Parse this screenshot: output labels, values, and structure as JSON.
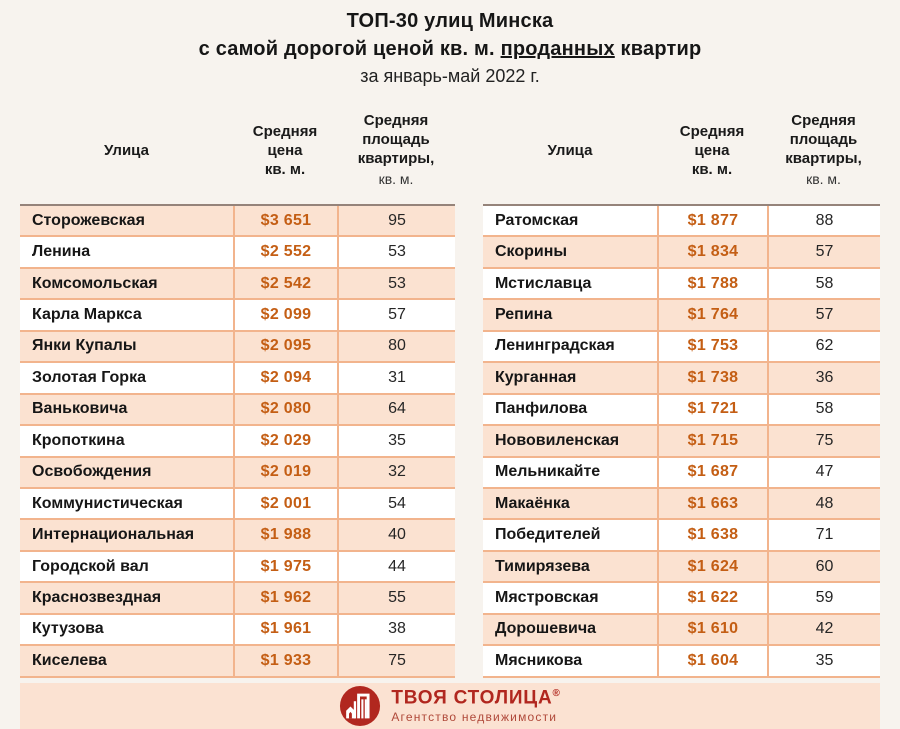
{
  "title": {
    "line1": "ТОП-30 улиц Минска",
    "line2_before": "с самой дорогой ценой кв. м. ",
    "line2_underline": "проданных",
    "line2_after": " квартир",
    "line3": "за январь-май 2022 г."
  },
  "table_headers": {
    "street": "Улица",
    "price": "Средняя\nцена\nкв. м.",
    "area": "Средняя\nплощадь\nквартиры,",
    "area_unit": "кв. м."
  },
  "chart_data": {
    "type": "table",
    "title": "ТОП-30 улиц Минска с самой дорогой ценой кв. м. проданных квартир за январь-май 2022 г.",
    "columns": [
      "Улица",
      "Средняя цена кв. м.",
      "Средняя площадь квартиры, кв. м."
    ],
    "tables": [
      {
        "rows": [
          [
            "Сторожевская",
            "$3 651",
            "95"
          ],
          [
            "Ленина",
            "$2 552",
            "53"
          ],
          [
            "Комсомольская",
            "$2 542",
            "53"
          ],
          [
            "Карла Маркса",
            "$2 099",
            "57"
          ],
          [
            "Янки Купалы",
            "$2 095",
            "80"
          ],
          [
            "Золотая Горка",
            "$2 094",
            "31"
          ],
          [
            "Ваньковича",
            "$2 080",
            "64"
          ],
          [
            "Кропоткина",
            "$2 029",
            "35"
          ],
          [
            "Освобождения",
            "$2 019",
            "32"
          ],
          [
            "Коммунистическая",
            "$2 001",
            "54"
          ],
          [
            "Интернациональная",
            "$1 988",
            "40"
          ],
          [
            "Городской вал",
            "$1 975",
            "44"
          ],
          [
            "Краснозвездная",
            "$1 962",
            "55"
          ],
          [
            "Кутузова",
            "$1 961",
            "38"
          ],
          [
            "Киселева",
            "$1 933",
            "75"
          ]
        ]
      },
      {
        "rows": [
          [
            "Ратомская",
            "$1 877",
            "88"
          ],
          [
            "Скорины",
            "$1 834",
            "57"
          ],
          [
            "Мстиславца",
            "$1 788",
            "58"
          ],
          [
            "Репина",
            "$1 764",
            "57"
          ],
          [
            "Ленинградская",
            "$1 753",
            "62"
          ],
          [
            "Курганная",
            "$1 738",
            "36"
          ],
          [
            "Панфилова",
            "$1 721",
            "58"
          ],
          [
            "Нововиленская",
            "$1 715",
            "75"
          ],
          [
            "Мельникайте",
            "$1 687",
            "47"
          ],
          [
            "Макаёнка",
            "$1 663",
            "48"
          ],
          [
            "Победителей",
            "$1 638",
            "71"
          ],
          [
            "Тимирязева",
            "$1 624",
            "60"
          ],
          [
            "Мястровская",
            "$1 622",
            "59"
          ],
          [
            "Дорошевича",
            "$1 610",
            "42"
          ],
          [
            "Мясникова",
            "$1 604",
            "35"
          ]
        ]
      }
    ]
  },
  "footer": {
    "brand": "ТВОЯ СТОЛИЦА",
    "reg": "®",
    "tagline": "Агентство недвижимости"
  },
  "colors": {
    "page_bg": "#f7f3ee",
    "row_peach": "#fbe2d1",
    "row_border": "#f2b48d",
    "table_top_border": "#95837a",
    "price_orange": "#c45e14",
    "brand_red": "#b1271f",
    "footer_band": "#fbe2d2"
  }
}
